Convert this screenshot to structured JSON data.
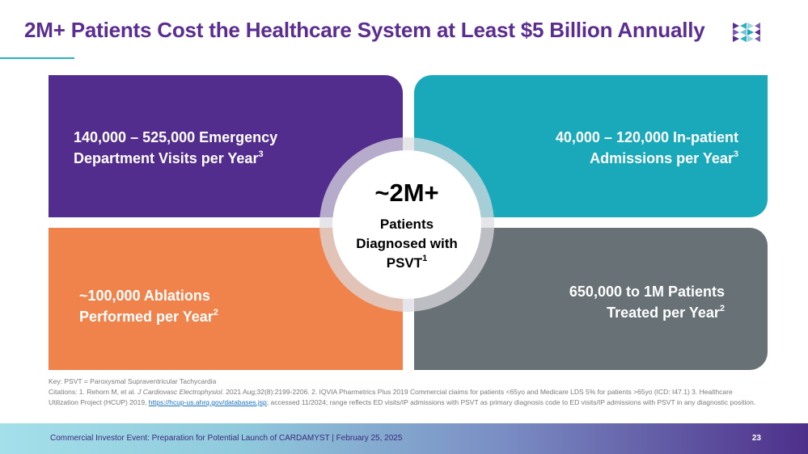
{
  "slide": {
    "title": "2M+ Patients Cost the Healthcare System at Least $5 Billion Annually"
  },
  "quadrants": {
    "top_left": {
      "line1": "140,000 – 525,000 Emergency",
      "line2": "Department Visits per Year",
      "ref": "3"
    },
    "top_right": {
      "line1": "40,000 – 120,000 In-patient",
      "line2": "Admissions per Year",
      "ref": "3"
    },
    "bottom_left": {
      "line1": "~100,000 Ablations",
      "line2": "Performed per Year",
      "ref": "2"
    },
    "bottom_right": {
      "line1": "650,000 to 1M Patients",
      "line2": "Treated per Year",
      "ref": "2"
    }
  },
  "center": {
    "big": "~2M+",
    "line1": "Patients",
    "line2": "Diagnosed with",
    "line3": "PSVT",
    "ref": "1"
  },
  "notes": {
    "key": "Key: PSVT = Paroxysmal Supraventricular Tachycardia",
    "citation_start": "Citations: 1. Rehorn M, et al. ",
    "journal": "J Cardiovasc Electrophysiol",
    "citation_mid": ". 2021 Aug;32(8):2199-2206. 2. IQVIA Pharmetrics Plus 2019 Commercial claims for patients <65yo and Medicare LDS 5% for patients >65yo (ICD: I47.1) 3. Healthcare Utilization Project (HCUP) 2019, ",
    "link": "https://hcup-us.ahrq.gov/databases.jsp",
    "citation_end": "; accessed 11/2024; range reflects ED visits/IP admissions with PSVT as primary diagnosis code to ED visits/IP admissions with PSVT in any diagnostic position."
  },
  "footer": {
    "text": "Commercial Investor Event: Preparation for Potential Launch of CARDAMYST | February 25, 2025",
    "page": "23"
  },
  "colors": {
    "title": "#5b2d91",
    "purple": "#532d8e",
    "teal": "#1aa9bb",
    "orange": "#f0834b",
    "gray": "#687175"
  },
  "icons": {
    "logo": "triangle-mosaic-logo-icon"
  }
}
